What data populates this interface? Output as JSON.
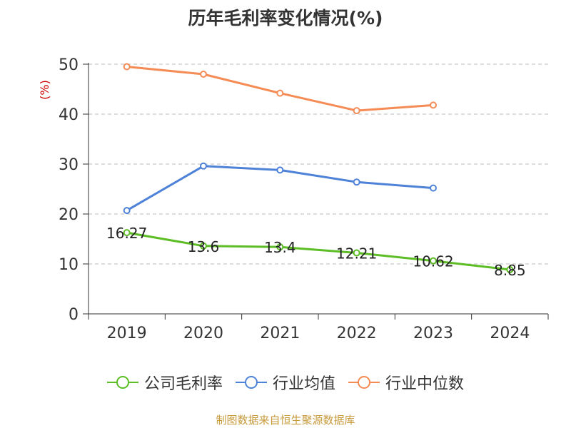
{
  "title": "历年毛利率变化情况(%)",
  "source": "制图数据来自恒生聚源数据库",
  "chart_data": {
    "type": "line",
    "title": "历年毛利率变化情况(%)",
    "ylabel": "(%)",
    "xlabel": "",
    "categories": [
      "2019",
      "2020",
      "2021",
      "2022",
      "2023",
      "2024"
    ],
    "yticks": [
      0,
      10,
      20,
      30,
      40,
      50
    ],
    "ylim": [
      0,
      50
    ],
    "grid": true,
    "legend_position": "bottom",
    "series": [
      {
        "name": "公司毛利率",
        "color": "#5cbd25",
        "values": [
          16.27,
          13.6,
          13.4,
          12.21,
          10.62,
          8.85
        ],
        "labels": [
          "16.27",
          "13.6",
          "13.4",
          "12.21",
          "10.62",
          "8.85"
        ]
      },
      {
        "name": "行业均值",
        "color": "#4d82d8",
        "values": [
          20.7,
          29.6,
          28.8,
          26.4,
          25.2,
          null
        ]
      },
      {
        "name": "行业中位数",
        "color": "#f58b55",
        "values": [
          49.5,
          48.0,
          44.2,
          40.7,
          41.8,
          null
        ]
      }
    ]
  }
}
